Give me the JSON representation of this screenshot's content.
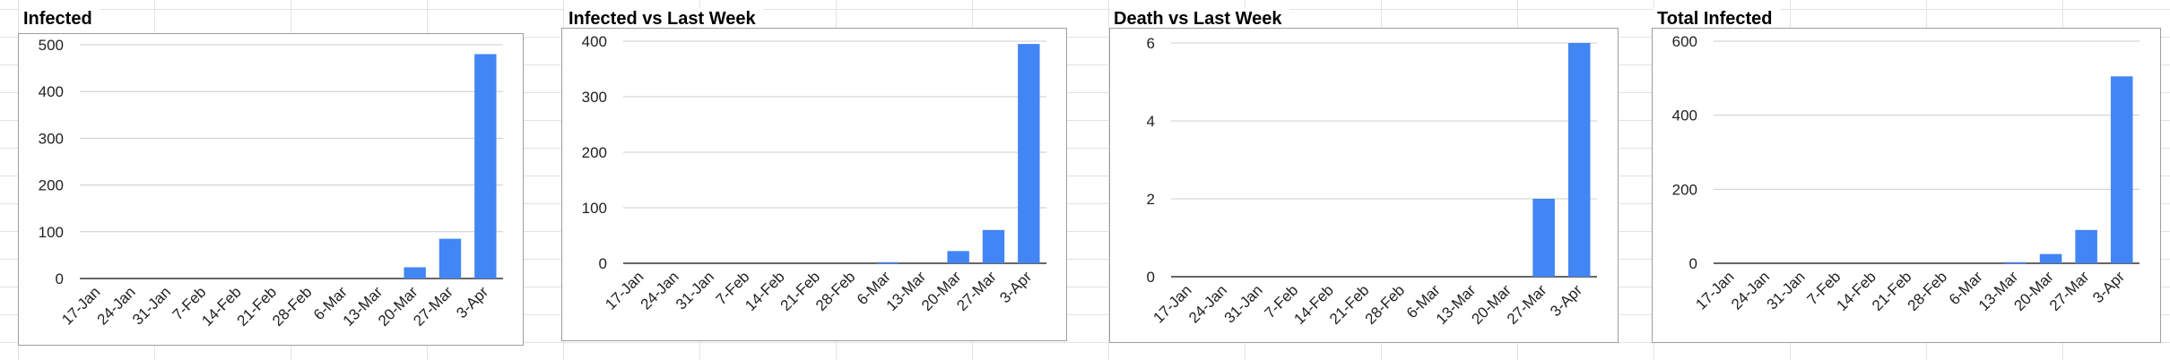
{
  "chart_data": [
    {
      "type": "bar",
      "title": "Infected",
      "categories": [
        "17-Jan",
        "24-Jan",
        "31-Jan",
        "7-Feb",
        "14-Feb",
        "21-Feb",
        "28-Feb",
        "6-Mar",
        "13-Mar",
        "20-Mar",
        "27-Mar",
        "3-Apr"
      ],
      "values": [
        0,
        0,
        0,
        0,
        0,
        0,
        0,
        0,
        0,
        24,
        85,
        480
      ],
      "ylim": [
        0,
        500
      ],
      "yticks": [
        0,
        100,
        200,
        300,
        400,
        500
      ],
      "grid": true,
      "color": "#4285f4"
    },
    {
      "type": "bar",
      "title": "Infected vs Last Week",
      "categories": [
        "17-Jan",
        "24-Jan",
        "31-Jan",
        "7-Feb",
        "14-Feb",
        "21-Feb",
        "28-Feb",
        "6-Mar",
        "13-Mar",
        "20-Mar",
        "27-Mar",
        "3-Apr"
      ],
      "values": [
        0,
        0,
        0,
        0,
        0,
        0,
        0,
        2,
        0,
        22,
        60,
        395
      ],
      "ylim": [
        0,
        400
      ],
      "yticks": [
        0,
        100,
        200,
        300,
        400
      ],
      "grid": true,
      "color": "#4285f4"
    },
    {
      "type": "bar",
      "title": "Death vs Last Week",
      "categories": [
        "17-Jan",
        "24-Jan",
        "31-Jan",
        "7-Feb",
        "14-Feb",
        "21-Feb",
        "28-Feb",
        "6-Mar",
        "13-Mar",
        "20-Mar",
        "27-Mar",
        "3-Apr"
      ],
      "values": [
        0,
        0,
        0,
        0,
        0,
        0,
        0,
        0,
        0,
        0,
        2,
        6
      ],
      "ylim": [
        0,
        6
      ],
      "yticks": [
        0,
        2,
        4,
        6
      ],
      "grid": true,
      "color": "#4285f4"
    },
    {
      "type": "bar",
      "title": "Total Infected",
      "categories": [
        "17-Jan",
        "24-Jan",
        "31-Jan",
        "7-Feb",
        "14-Feb",
        "21-Feb",
        "28-Feb",
        "6-Mar",
        "13-Mar",
        "20-Mar",
        "27-Mar",
        "3-Apr"
      ],
      "values": [
        0,
        0,
        0,
        0,
        0,
        0,
        0,
        0,
        3,
        25,
        90,
        505
      ],
      "ylim": [
        0,
        600
      ],
      "yticks": [
        0,
        200,
        400,
        600
      ],
      "grid": true,
      "color": "#4285f4"
    }
  ]
}
